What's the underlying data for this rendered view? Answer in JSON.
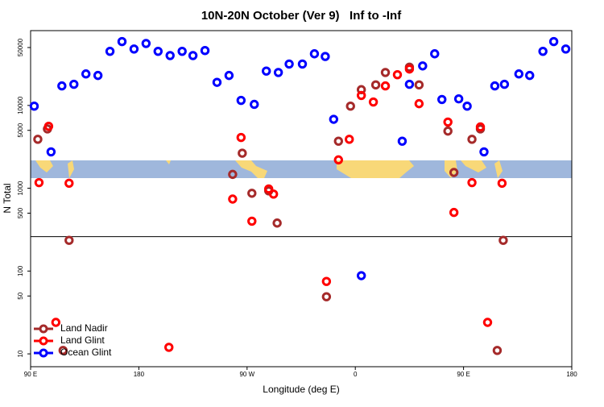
{
  "chart_data": {
    "type": "scatter",
    "title": "10N-20N October (Ver 9)   Inf to -Inf",
    "xlabel": "Longitude (deg E)",
    "ylabel": "N Total",
    "xlim": [
      90,
      540
    ],
    "ylim": [
      7,
      80000
    ],
    "ylog": true,
    "xticks": [
      {
        "value": 90,
        "label": "90 E"
      },
      180,
      {
        "value": 270,
        "label": "90 W"
      },
      {
        "value": 360,
        "label": "0"
      },
      {
        "value": 450,
        "label": "90 E"
      },
      {
        "value": 540,
        "label": "180"
      }
    ],
    "yticks": [
      10,
      50,
      100,
      500,
      1000,
      5000,
      10000,
      50000
    ],
    "hline": 260,
    "legend": "bottom-left",
    "series": [
      {
        "name": "Land Nadir",
        "color": "#a52a2a",
        "x": [
          96,
          104,
          117,
          122,
          258,
          266,
          274,
          288,
          295,
          336,
          346,
          356,
          365,
          377,
          385,
          405,
          413,
          437,
          442,
          457,
          464,
          478,
          483
        ],
        "values": [
          3900,
          5200,
          11,
          235,
          1470,
          2650,
          870,
          930,
          380,
          49,
          3700,
          9800,
          15500,
          17700,
          25000,
          29000,
          17700,
          4900,
          1550,
          3900,
          5200,
          11,
          235
        ]
      },
      {
        "name": "Land Glint",
        "color": "#ff0000",
        "x": [
          105,
          97,
          111,
          122,
          205,
          258,
          265,
          274,
          288,
          292,
          336,
          346,
          355,
          365,
          375,
          385,
          395,
          405,
          413,
          437,
          442,
          457,
          464,
          470,
          482
        ],
        "values": [
          5600,
          1170,
          24,
          1150,
          12,
          740,
          4100,
          400,
          980,
          850,
          75,
          2200,
          3900,
          13200,
          11000,
          17200,
          23500,
          27500,
          10500,
          6300,
          510,
          1170,
          5500,
          24,
          1150
        ]
      },
      {
        "name": "Ocean Glint",
        "color": "#0000ff",
        "x": [
          93,
          107,
          116,
          126,
          136,
          146,
          156,
          166,
          176,
          186,
          196,
          206,
          216,
          225,
          235,
          245,
          255,
          265,
          276,
          286,
          296,
          305,
          316,
          326,
          335,
          342,
          365,
          399,
          405,
          416,
          426,
          432,
          446,
          453,
          467,
          476,
          484,
          496,
          505,
          516,
          525,
          535
        ],
        "values": [
          9800,
          2750,
          17200,
          18000,
          24000,
          23000,
          45000,
          59000,
          48000,
          56000,
          45000,
          40000,
          45000,
          40000,
          46000,
          19000,
          23000,
          11500,
          10300,
          26000,
          25000,
          31600,
          31600,
          42000,
          39000,
          6800,
          88,
          3700,
          18000,
          30000,
          42000,
          11800,
          12000,
          9800,
          2750,
          17200,
          18000,
          24000,
          23000,
          45000,
          59000,
          48000
        ]
      }
    ]
  }
}
